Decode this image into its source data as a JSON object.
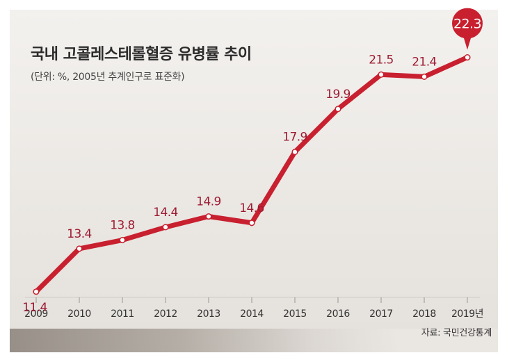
{
  "chart_data": {
    "type": "line",
    "title": "국내 고콜레스테롤혈증 유병률 추이",
    "subtitle": "(단위: %, 2005년 추계인구로 표준화)",
    "source": "자료: 국민건강통계",
    "x": [
      "2009",
      "2010",
      "2011",
      "2012",
      "2013",
      "2014",
      "2015",
      "2016",
      "2017",
      "2018",
      "2019년"
    ],
    "values": [
      11.4,
      13.4,
      13.8,
      14.4,
      14.9,
      14.6,
      17.9,
      19.9,
      21.5,
      21.4,
      22.3
    ],
    "highlight_index": 10,
    "ylim": [
      9,
      24
    ],
    "grid": false,
    "legend": "none",
    "colors": {
      "line": "#c8202f",
      "label": "#9e1b32",
      "marker_fill": "#ffffff",
      "callout": "#c8202f"
    }
  }
}
